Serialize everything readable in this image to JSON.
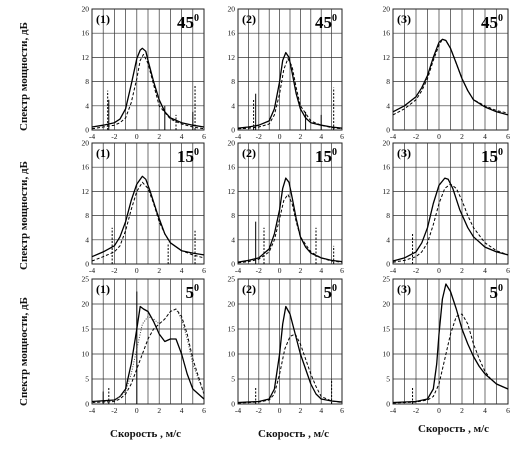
{
  "figure": {
    "ylabel": "Спектр мощности, дБ",
    "xlabel": "Скорость , м/с"
  },
  "chart_data": [
    {
      "id": "r1c1",
      "type": "line",
      "panel_label": "(1)",
      "angle": "45",
      "angle_sup": "0",
      "xlim": [
        -4,
        6
      ],
      "ylim": [
        0,
        20
      ],
      "xticks": [
        -4,
        -2,
        0,
        2,
        4,
        6
      ],
      "yticks": [
        0,
        4,
        8,
        12,
        16,
        20
      ],
      "grid": true,
      "series": [
        {
          "style": "solid",
          "x": [
            -4,
            -3,
            -2,
            -1.5,
            -1,
            -0.5,
            0,
            0.3,
            0.5,
            0.8,
            1,
            1.5,
            2,
            2.5,
            3,
            4,
            5,
            6
          ],
          "y": [
            0.5,
            0.8,
            1.2,
            1.8,
            3.5,
            7.5,
            11.8,
            13.2,
            13.5,
            13,
            11.5,
            8,
            5,
            3,
            2,
            1.2,
            0.8,
            0.5
          ],
          "spikes": [
            {
              "x": -2.5,
              "y": 5
            },
            {
              "x": 2.5,
              "y": 4
            },
            {
              "x": 5,
              "y": 3
            }
          ]
        },
        {
          "style": "dashed",
          "x": [
            -4,
            -3,
            -2,
            -1.5,
            -1,
            -0.5,
            0,
            0.3,
            0.6,
            1,
            1.5,
            2,
            3,
            4,
            5,
            6
          ],
          "y": [
            0.2,
            0.5,
            0.8,
            1.2,
            2,
            4.5,
            8.5,
            11.5,
            12.5,
            11,
            7.5,
            4,
            1.8,
            1,
            0.5,
            0.2
          ],
          "spikes": [
            {
              "x": -2.6,
              "y": 6.5
            },
            {
              "x": 3.5,
              "y": 2.5
            },
            {
              "x": 5.2,
              "y": 7.5
            }
          ]
        }
      ]
    },
    {
      "id": "r1c2",
      "type": "line",
      "panel_label": "(2)",
      "angle": "45",
      "angle_sup": "0",
      "xlim": [
        -4,
        6
      ],
      "ylim": [
        0,
        20
      ],
      "xticks": [
        -4,
        -2,
        0,
        2,
        4,
        6
      ],
      "yticks": [
        0,
        4,
        8,
        12,
        16,
        20
      ],
      "grid": true,
      "series": [
        {
          "style": "solid",
          "x": [
            -4,
            -3,
            -2,
            -1,
            -0.5,
            0,
            0.3,
            0.6,
            0.9,
            1.2,
            1.6,
            2,
            2.5,
            3,
            4,
            5,
            6
          ],
          "y": [
            0.3,
            0.5,
            0.8,
            1.5,
            3.5,
            8,
            11.5,
            12.8,
            12,
            9.5,
            6,
            3.5,
            2,
            1.2,
            0.8,
            0.5,
            0.3
          ],
          "spikes": [
            {
              "x": -2.3,
              "y": 6
            },
            {
              "x": 2.5,
              "y": 3
            },
            {
              "x": 4,
              "y": 2.5
            }
          ]
        },
        {
          "style": "dashed",
          "x": [
            -4,
            -3,
            -2,
            -1,
            -0.5,
            0,
            0.4,
            0.8,
            1.2,
            1.6,
            2,
            3,
            4,
            5,
            6
          ],
          "y": [
            0.2,
            0.3,
            0.5,
            1,
            2.5,
            6,
            10,
            11.8,
            10.5,
            7,
            4,
            1.5,
            0.8,
            0.4,
            0.2
          ],
          "spikes": [
            {
              "x": -2.5,
              "y": 5
            },
            {
              "x": 5.2,
              "y": 7
            }
          ]
        }
      ]
    },
    {
      "id": "r1c3",
      "type": "line",
      "panel_label": "(3)",
      "angle": "45",
      "angle_sup": "0",
      "xlim": [
        -4,
        6
      ],
      "ylim": [
        0,
        20
      ],
      "xticks": [
        -4,
        -2,
        0,
        2,
        4,
        6
      ],
      "yticks": [
        0,
        4,
        8,
        12,
        16,
        20
      ],
      "grid": true,
      "series": [
        {
          "style": "solid",
          "x": [
            -4,
            -3,
            -2,
            -1.5,
            -1,
            -0.5,
            0,
            0.3,
            0.6,
            1,
            1.5,
            2,
            2.5,
            3,
            4,
            5,
            6
          ],
          "y": [
            3,
            4,
            5.5,
            7,
            9,
            12,
            14.5,
            15,
            14.8,
            13.5,
            11,
            8.5,
            6.5,
            5,
            3.8,
            3,
            2.5
          ],
          "spikes": []
        },
        {
          "style": "dashed",
          "x": [
            -4,
            -3,
            -2,
            -1.5,
            -1,
            -0.5,
            0,
            0.3,
            0.6,
            1,
            1.5,
            2,
            2.5,
            3,
            4,
            5,
            6
          ],
          "y": [
            2.5,
            3.5,
            5,
            6.5,
            8.5,
            11.5,
            14,
            15,
            14.8,
            13.5,
            11,
            8.5,
            6.5,
            5,
            4,
            3.2,
            2.8
          ],
          "spikes": []
        }
      ]
    },
    {
      "id": "r2c1",
      "type": "line",
      "panel_label": "(1)",
      "angle": "15",
      "angle_sup": "0",
      "xlim": [
        -4,
        6
      ],
      "ylim": [
        0,
        20
      ],
      "xticks": [
        -4,
        -2,
        0,
        2,
        4,
        6
      ],
      "yticks": [
        0,
        4,
        8,
        12,
        16,
        20
      ],
      "grid": true,
      "series": [
        {
          "style": "solid",
          "x": [
            -4,
            -3,
            -2,
            -1.5,
            -1,
            -0.5,
            0,
            0.5,
            0.8,
            1.2,
            1.8,
            2.5,
            3,
            4,
            5,
            6
          ],
          "y": [
            1.2,
            2,
            3,
            4.5,
            7,
            10.5,
            13.2,
            14.5,
            14,
            12,
            8.5,
            5,
            3.5,
            2.2,
            1.8,
            1.5
          ],
          "spikes": []
        },
        {
          "style": "dashed",
          "x": [
            -4,
            -3,
            -2,
            -1.5,
            -1,
            -0.5,
            0,
            0.5,
            1,
            1.5,
            2,
            2.5,
            3,
            4,
            5,
            6
          ],
          "y": [
            0.5,
            1.2,
            2,
            3,
            5.5,
            9,
            12,
            13.5,
            12.5,
            10,
            7,
            5,
            3.5,
            2.2,
            1.5,
            1
          ],
          "spikes": [
            {
              "x": -2.2,
              "y": 6
            },
            {
              "x": 2.8,
              "y": 3.5
            },
            {
              "x": 5.2,
              "y": 5.5
            }
          ]
        }
      ]
    },
    {
      "id": "r2c2",
      "type": "line",
      "panel_label": "(2)",
      "angle": "15",
      "angle_sup": "0",
      "xlim": [
        -4,
        6
      ],
      "ylim": [
        0,
        20
      ],
      "xticks": [
        -4,
        -2,
        0,
        2,
        4,
        6
      ],
      "yticks": [
        0,
        4,
        8,
        12,
        16,
        20
      ],
      "grid": true,
      "series": [
        {
          "style": "solid",
          "x": [
            -4,
            -3,
            -2,
            -1,
            -0.5,
            0,
            0.3,
            0.6,
            0.9,
            1.2,
            1.6,
            2,
            2.5,
            3,
            4,
            5,
            6
          ],
          "y": [
            0.3,
            0.6,
            1,
            2.5,
            5,
            9,
            12.5,
            14.2,
            13.5,
            11,
            7.5,
            4.5,
            2.8,
            1.8,
            1,
            0.6,
            0.4
          ],
          "spikes": [
            {
              "x": -2.3,
              "y": 7
            }
          ]
        },
        {
          "style": "dashed",
          "x": [
            -4,
            -3,
            -2,
            -1,
            -0.5,
            0,
            0.4,
            0.8,
            1.2,
            1.6,
            2,
            3,
            4,
            5,
            6
          ],
          "y": [
            0.2,
            0.4,
            0.8,
            2,
            4,
            7.5,
            10.5,
            11.5,
            10,
            7,
            4.5,
            2,
            1,
            0.5,
            0.3
          ],
          "spikes": [
            {
              "x": -1.5,
              "y": 6
            },
            {
              "x": 3.5,
              "y": 6
            },
            {
              "x": 5.2,
              "y": 3
            }
          ]
        }
      ]
    },
    {
      "id": "r2c3",
      "type": "line",
      "panel_label": "(3)",
      "angle": "15",
      "angle_sup": "0",
      "xlim": [
        -4,
        6
      ],
      "ylim": [
        0,
        20
      ],
      "xticks": [
        -4,
        -2,
        0,
        2,
        4,
        6
      ],
      "yticks": [
        0,
        4,
        8,
        12,
        16,
        20
      ],
      "grid": true,
      "series": [
        {
          "style": "solid",
          "x": [
            -4,
            -3,
            -2,
            -1.5,
            -1,
            -0.5,
            0,
            0.5,
            0.8,
            1.2,
            1.8,
            2.5,
            3,
            4,
            5,
            6
          ],
          "y": [
            0.5,
            1,
            2,
            3.5,
            6,
            10,
            13,
            14.2,
            14,
            12.5,
            9,
            6,
            4.5,
            2.8,
            2,
            1.5
          ],
          "spikes": []
        },
        {
          "style": "dashed",
          "x": [
            -4,
            -3,
            -2,
            -1.5,
            -1,
            -0.5,
            0,
            0.5,
            1,
            1.5,
            2,
            2.5,
            3,
            4,
            5,
            6
          ],
          "y": [
            0.3,
            0.6,
            1.2,
            2,
            3.5,
            6.5,
            10,
            12.5,
            13.2,
            12.5,
            10.5,
            8,
            6,
            3.5,
            2.2,
            1.5
          ],
          "spikes": [
            {
              "x": -2.3,
              "y": 5
            }
          ]
        }
      ]
    },
    {
      "id": "r3c1",
      "type": "line",
      "panel_label": "(1)",
      "angle": "5",
      "angle_sup": "0",
      "xlim": [
        -4,
        6
      ],
      "ylim": [
        0,
        25
      ],
      "xticks": [
        -4,
        -2,
        0,
        2,
        4,
        6
      ],
      "yticks": [
        0,
        5,
        10,
        15,
        20,
        25
      ],
      "grid": true,
      "series": [
        {
          "style": "solid",
          "x": [
            -4,
            -2,
            -1.5,
            -1,
            -0.5,
            0,
            0.3,
            0.6,
            1,
            1.5,
            2,
            2.5,
            3,
            3.5,
            4,
            4.5,
            5,
            6
          ],
          "y": [
            0.5,
            0.8,
            1.5,
            3,
            8,
            15,
            19.5,
            19,
            18.5,
            16.5,
            14,
            12.5,
            13,
            13,
            10,
            6,
            3,
            1
          ],
          "spikes": [
            {
              "x": 0,
              "y": 22.5
            },
            {
              "x": -3,
              "y": 2.5
            }
          ]
        },
        {
          "style": "dashed",
          "x": [
            -4,
            -2,
            -1.5,
            -1,
            -0.5,
            0,
            0.5,
            1,
            1.5,
            2,
            2.5,
            3,
            3.5,
            4,
            4.5,
            5,
            6
          ],
          "y": [
            0.3,
            0.5,
            1,
            2,
            4,
            7,
            10,
            13,
            15,
            16,
            17,
            18.5,
            19,
            17.5,
            14,
            9,
            2
          ],
          "spikes": [
            {
              "x": -2.5,
              "y": 3.5
            }
          ]
        },
        {
          "style": "dotted",
          "x": [
            -4,
            -2,
            -1,
            -0.5,
            0,
            0.5,
            1,
            1.5,
            2,
            2.5,
            3,
            3.5,
            4,
            4.5,
            5,
            6
          ],
          "y": [
            0.3,
            0.6,
            2.5,
            6,
            11,
            16,
            17.5,
            17,
            16,
            17,
            18.5,
            19,
            17,
            13,
            8,
            2
          ],
          "spikes": []
        }
      ]
    },
    {
      "id": "r3c2",
      "type": "line",
      "panel_label": "(2)",
      "angle": "5",
      "angle_sup": "0",
      "xlim": [
        -4,
        6
      ],
      "ylim": [
        0,
        25
      ],
      "xticks": [
        -4,
        -2,
        0,
        2,
        4,
        6
      ],
      "yticks": [
        0,
        5,
        10,
        15,
        20,
        25
      ],
      "grid": true,
      "series": [
        {
          "style": "solid",
          "x": [
            -4,
            -2,
            -1,
            -0.5,
            0,
            0.3,
            0.6,
            1,
            1.5,
            2,
            2.5,
            3,
            3.5,
            4,
            5,
            6
          ],
          "y": [
            0.3,
            0.5,
            1,
            3,
            10,
            16,
            19.5,
            18,
            14,
            10,
            7,
            4,
            2,
            1,
            0.6,
            0.4
          ],
          "spikes": []
        },
        {
          "style": "dashed",
          "x": [
            -4,
            -2,
            -1,
            -0.5,
            0,
            0.5,
            1,
            1.5,
            2,
            2.5,
            3,
            3.5,
            4,
            5,
            6
          ],
          "y": [
            0.2,
            0.4,
            0.8,
            2,
            6,
            11,
            13.5,
            14,
            12,
            9,
            6,
            3.5,
            1.5,
            0.6,
            0.3
          ],
          "spikes": [
            {
              "x": -2.3,
              "y": 3.5
            },
            {
              "x": 5,
              "y": 5
            }
          ]
        }
      ]
    },
    {
      "id": "r3c3",
      "type": "line",
      "panel_label": "(3)",
      "angle": "5",
      "angle_sup": "0",
      "xlim": [
        -4,
        6
      ],
      "ylim": [
        0,
        25
      ],
      "xticks": [
        -4,
        -2,
        0,
        2,
        4,
        6
      ],
      "yticks": [
        0,
        5,
        10,
        15,
        20,
        25
      ],
      "grid": true,
      "series": [
        {
          "style": "solid",
          "x": [
            -4,
            -2,
            -1,
            -0.5,
            -0.2,
            0,
            0.3,
            0.6,
            1,
            1.5,
            2,
            2.5,
            3,
            3.5,
            4,
            4.5,
            5,
            6
          ],
          "y": [
            0.3,
            0.5,
            1,
            3,
            8,
            14,
            21,
            24,
            22.5,
            19,
            15,
            12,
            9.5,
            7.5,
            6,
            5,
            4,
            3
          ],
          "spikes": []
        },
        {
          "style": "dashed",
          "x": [
            -4,
            -2,
            -1,
            -0.5,
            0,
            0.5,
            1,
            1.5,
            2,
            2.5,
            3,
            3.5,
            4,
            4.5,
            5,
            6
          ],
          "y": [
            0.2,
            0.4,
            0.8,
            1.5,
            4,
            9,
            14,
            17.5,
            18,
            16,
            12,
            9,
            6.5,
            5,
            4,
            3
          ],
          "spikes": [
            {
              "x": -2.3,
              "y": 3.5
            }
          ]
        }
      ]
    }
  ]
}
